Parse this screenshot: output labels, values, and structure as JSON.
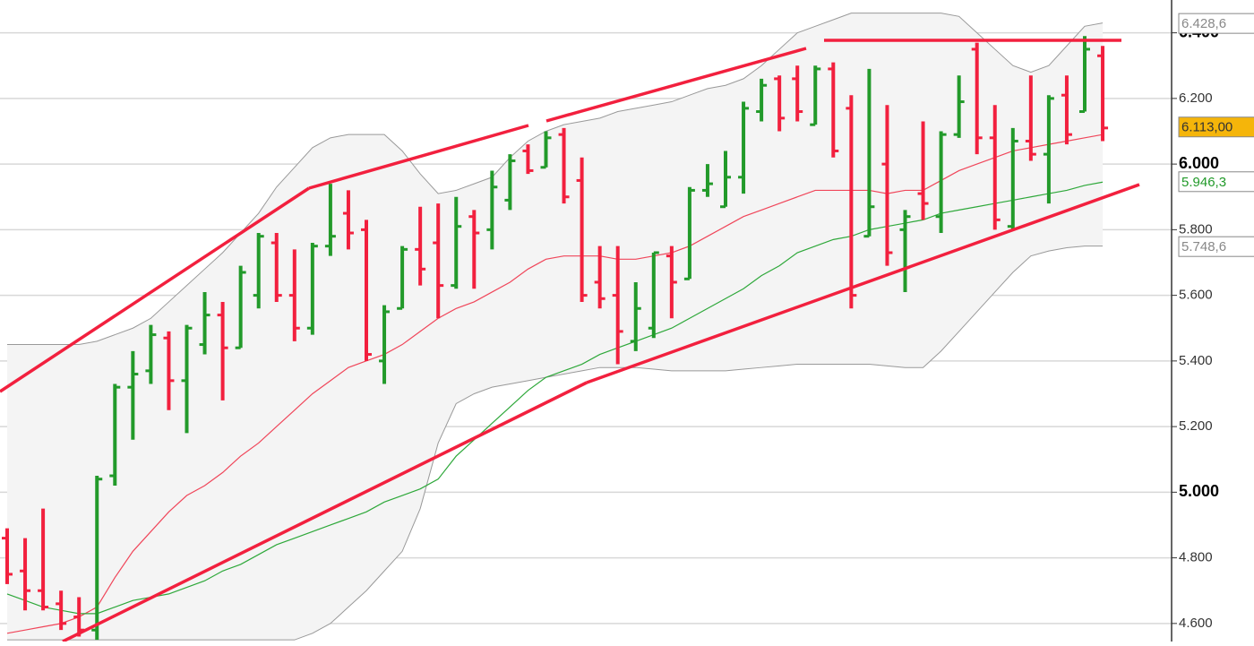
{
  "chart_data": {
    "type": "ohlc",
    "categories": [
      null,
      null,
      null,
      null,
      null,
      null,
      null,
      null,
      null,
      null,
      null,
      null,
      null,
      null,
      null,
      null,
      null,
      null,
      null,
      null,
      null,
      null,
      null,
      null,
      null,
      null,
      null,
      null,
      null,
      null,
      null,
      null,
      null,
      null,
      null,
      null,
      null,
      null,
      null,
      null,
      null,
      null,
      null,
      null,
      null,
      null,
      null,
      null,
      null,
      null,
      null,
      null,
      null,
      null,
      null,
      null,
      null,
      null,
      null,
      null,
      null,
      null
    ],
    "ohlc": [
      [
        4860,
        4890,
        4720,
        4750
      ],
      [
        4760,
        4860,
        4640,
        4700
      ],
      [
        4700,
        4950,
        4640,
        4650
      ],
      [
        4660,
        4700,
        4580,
        4600
      ],
      [
        4620,
        4680,
        4560,
        4580
      ],
      [
        4580,
        5050,
        4550,
        5040
      ],
      [
        5050,
        5330,
        5020,
        5320
      ],
      [
        5320,
        5430,
        5160,
        5360
      ],
      [
        5370,
        5510,
        5330,
        5480
      ],
      [
        5470,
        5490,
        5250,
        5340
      ],
      [
        5340,
        5510,
        5180,
        5500
      ],
      [
        5450,
        5610,
        5420,
        5540
      ],
      [
        5540,
        5580,
        5280,
        5440
      ],
      [
        5440,
        5690,
        5440,
        5670
      ],
      [
        5600,
        5790,
        5560,
        5780
      ],
      [
        5760,
        5790,
        5580,
        5600
      ],
      [
        5600,
        5740,
        5460,
        5500
      ],
      [
        5500,
        5760,
        5480,
        5750
      ],
      [
        5750,
        5940,
        5720,
        5780
      ],
      [
        5850,
        5920,
        5740,
        5790
      ],
      [
        5800,
        5830,
        5400,
        5420
      ],
      [
        5400,
        5570,
        5330,
        5550
      ],
      [
        5560,
        5750,
        5560,
        5740
      ],
      [
        5740,
        5870,
        5630,
        5680
      ],
      [
        5760,
        5880,
        5530,
        5630
      ],
      [
        5630,
        5900,
        5620,
        5810
      ],
      [
        5840,
        5860,
        5620,
        5790
      ],
      [
        5800,
        5980,
        5740,
        5930
      ],
      [
        5890,
        6030,
        5860,
        6010
      ],
      [
        6040,
        6060,
        5970,
        5980
      ],
      [
        5990,
        6100,
        5990,
        6080
      ],
      [
        6090,
        6110,
        5880,
        5900
      ],
      [
        5950,
        6020,
        5580,
        5600
      ],
      [
        5640,
        5750,
        5560,
        5590
      ],
      [
        5600,
        5750,
        5390,
        5490
      ],
      [
        5460,
        5640,
        5430,
        5560
      ],
      [
        5500,
        5730,
        5470,
        5730
      ],
      [
        5720,
        5750,
        5530,
        5640
      ],
      [
        5650,
        5930,
        5650,
        5920
      ],
      [
        5920,
        6000,
        5900,
        5940
      ],
      [
        5870,
        6040,
        5870,
        5960
      ],
      [
        5960,
        6190,
        5910,
        6170
      ],
      [
        6160,
        6260,
        6130,
        6240
      ],
      [
        6260,
        6270,
        6100,
        6140
      ],
      [
        6260,
        6300,
        6130,
        6160
      ],
      [
        6120,
        6300,
        6120,
        6290
      ],
      [
        6290,
        6310,
        6020,
        6040
      ],
      [
        6170,
        6210,
        5560,
        5600
      ],
      [
        5780,
        6290,
        5780,
        5870
      ],
      [
        6000,
        6180,
        5690,
        5730
      ],
      [
        5800,
        5860,
        5610,
        5840
      ],
      [
        5910,
        6130,
        5830,
        5880
      ],
      [
        5840,
        6100,
        5790,
        6090
      ],
      [
        6090,
        6270,
        6080,
        6190
      ],
      [
        6350,
        6370,
        6030,
        6080
      ],
      [
        6080,
        6180,
        5800,
        5830
      ],
      [
        5810,
        6110,
        5800,
        6070
      ],
      [
        6070,
        6270,
        6010,
        6030
      ],
      [
        6030,
        6210,
        5880,
        6200
      ],
      [
        6210,
        6270,
        6060,
        6090
      ],
      [
        6160,
        6390,
        6160,
        6350
      ],
      [
        6330,
        6360,
        6070,
        6110
      ]
    ],
    "up_color": "#229a2a",
    "down_color": "#f2203e",
    "series": [
      {
        "name": null,
        "color": "#f0465a",
        "values": [
          4570,
          4580,
          4590,
          4600,
          4620,
          4650,
          4740,
          4820,
          4880,
          4940,
          4990,
          5020,
          5060,
          5110,
          5150,
          5200,
          5250,
          5300,
          5340,
          5380,
          5400,
          5420,
          5450,
          5490,
          5530,
          5560,
          5580,
          5610,
          5640,
          5680,
          5710,
          5720,
          5720,
          5720,
          5710,
          5710,
          5720,
          5730,
          5750,
          5780,
          5810,
          5840,
          5860,
          5880,
          5900,
          5920,
          5920,
          5920,
          5920,
          5910,
          5920,
          5920,
          5950,
          5980,
          6000,
          6020,
          6040,
          6050,
          6060,
          6070,
          6080,
          6090
        ]
      },
      {
        "name": null,
        "color": "#2ea83a",
        "values": [
          4690,
          4670,
          4650,
          4640,
          4630,
          4630,
          4650,
          4670,
          4680,
          4690,
          4710,
          4730,
          4760,
          4780,
          4810,
          4840,
          4860,
          4880,
          4900,
          4920,
          4940,
          4970,
          4990,
          5010,
          5040,
          5110,
          5160,
          5210,
          5260,
          5310,
          5350,
          5370,
          5390,
          5420,
          5440,
          5460,
          5480,
          5500,
          5530,
          5560,
          5590,
          5620,
          5660,
          5690,
          5730,
          5750,
          5770,
          5780,
          5800,
          5810,
          5820,
          5830,
          5850,
          5860,
          5870,
          5880,
          5890,
          5900,
          5910,
          5920,
          5935,
          5945
        ]
      }
    ],
    "band": {
      "color": "#999999",
      "fill": "#f4f4f4",
      "upper": [
        5450,
        5450,
        5450,
        5450,
        5450,
        5460,
        5480,
        5500,
        5530,
        5580,
        5630,
        5680,
        5730,
        5790,
        5850,
        5930,
        5990,
        6050,
        6080,
        6090,
        6090,
        6090,
        6040,
        5970,
        5910,
        5920,
        5940,
        5960,
        6020,
        6070,
        6100,
        6120,
        6130,
        6140,
        6160,
        6170,
        6180,
        6190,
        6210,
        6230,
        6240,
        6260,
        6300,
        6350,
        6400,
        6420,
        6440,
        6460,
        6460,
        6460,
        6460,
        6460,
        6460,
        6450,
        6400,
        6350,
        6300,
        6280,
        6300,
        6360,
        6420,
        6430
      ],
      "lower": [
        4550,
        4550,
        4550,
        4550,
        4550,
        4550,
        4550,
        4550,
        4550,
        4550,
        4550,
        4550,
        4550,
        4550,
        4550,
        4550,
        4550,
        4570,
        4600,
        4650,
        4700,
        4760,
        4820,
        4950,
        5150,
        5270,
        5300,
        5320,
        5330,
        5340,
        5350,
        5360,
        5370,
        5380,
        5380,
        5380,
        5375,
        5370,
        5370,
        5370,
        5370,
        5375,
        5380,
        5385,
        5390,
        5390,
        5390,
        5390,
        5390,
        5385,
        5380,
        5380,
        5430,
        5490,
        5550,
        5610,
        5670,
        5720,
        5735,
        5745,
        5750,
        5750
      ]
    },
    "ylim": [
      4545,
      6500
    ],
    "yticks": [
      {
        "value": 4600,
        "label": "4.600"
      },
      {
        "value": 4800,
        "label": "4.800"
      },
      {
        "value": 5000,
        "label": "5.000",
        "bold": true
      },
      {
        "value": 5200,
        "label": "5.200"
      },
      {
        "value": 5400,
        "label": "5.400"
      },
      {
        "value": 5600,
        "label": "5.600"
      },
      {
        "value": 5800,
        "label": "5.800"
      },
      {
        "value": 6000,
        "label": "6.000",
        "bold": true
      },
      {
        "value": 6200,
        "label": "6.200"
      },
      {
        "value": 6400,
        "label": "6.400",
        "bold": true
      }
    ],
    "grid": true,
    "price_labels": [
      {
        "value": 6428.6,
        "label": "6.428,6",
        "color": "#888888",
        "background": "#ffffff"
      },
      {
        "value": 6113,
        "label": "6.113,00",
        "color": "#333333",
        "background": "#f5b50a"
      },
      {
        "value": 5946.3,
        "label": "5.946,3",
        "color": "#229a2a",
        "background": "#ffffff"
      },
      {
        "value": 5748.6,
        "label": "5.748,6",
        "color": "#888888",
        "background": "#ffffff"
      }
    ]
  }
}
